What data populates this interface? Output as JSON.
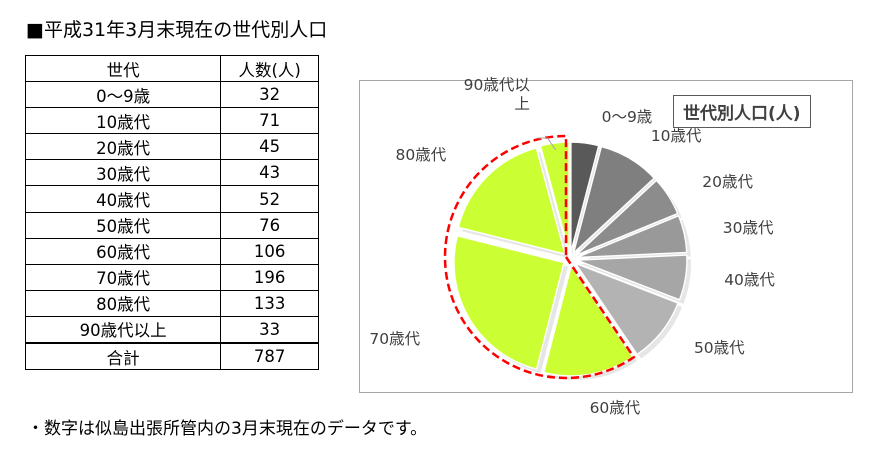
{
  "title": "■平成31年3月末現在の世代別人口",
  "table": {
    "header": [
      "世代",
      "人数(人)"
    ],
    "rows": [
      [
        "0〜9歳",
        "32"
      ],
      [
        "10歳代",
        "71"
      ],
      [
        "20歳代",
        "45"
      ],
      [
        "30歳代",
        "43"
      ],
      [
        "40歳代",
        "52"
      ],
      [
        "50歳代",
        "76"
      ],
      [
        "60歳代",
        "106"
      ],
      [
        "70歳代",
        "196"
      ],
      [
        "80歳代",
        "133"
      ],
      [
        "90歳代以上",
        "33"
      ]
    ],
    "total": [
      "合計",
      "787"
    ]
  },
  "chart_data": {
    "type": "pie",
    "title": "世代別人口(人)",
    "categories": [
      "0〜9歳",
      "10歳代",
      "20歳代",
      "30歳代",
      "40歳代",
      "50歳代",
      "60歳代",
      "70歳代",
      "80歳代",
      "90歳代以上"
    ],
    "values": [
      32,
      71,
      45,
      43,
      52,
      76,
      106,
      196,
      133,
      33
    ],
    "colors": [
      "#595959",
      "#7f7f7f",
      "#8c8c8c",
      "#999999",
      "#a6a6a6",
      "#b3b3b3",
      "#ccff33",
      "#ccff33",
      "#ccff33",
      "#ccff33"
    ],
    "exploded": true,
    "highlight": {
      "categories": [
        "60歳代",
        "70歳代",
        "80歳代",
        "90歳代以上"
      ],
      "outline_color": "#ff0000",
      "outline_style": "dashed"
    }
  },
  "footnote": "・数字は似島出張所管内の3月末現在のデータです。"
}
